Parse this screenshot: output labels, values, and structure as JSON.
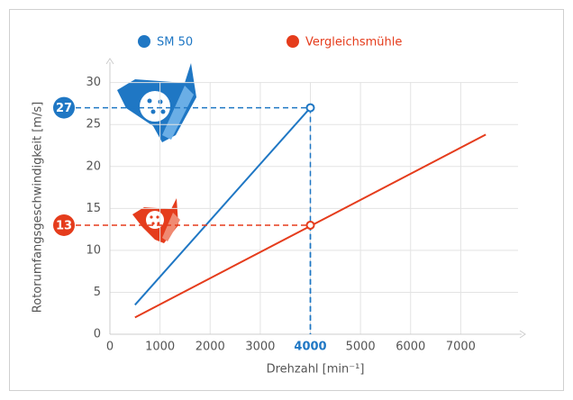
{
  "chart_data": {
    "type": "line",
    "x_label": "Drehzahl [min⁻¹]",
    "y_label": "Rotorumfangsgeschwindigkeit [m/s]",
    "xlim": [
      0,
      8000
    ],
    "ylim": [
      0,
      32
    ],
    "xticks": [
      0,
      1000,
      2000,
      3000,
      4000,
      5000,
      6000,
      7000
    ],
    "yticks": [
      0,
      5,
      10,
      15,
      20,
      25,
      30
    ],
    "grid": true,
    "legend": "top",
    "series": [
      {
        "name": "SM 50",
        "color": "#1f77c4",
        "x": [
          500,
          4000
        ],
        "values": [
          3.5,
          27
        ]
      },
      {
        "name": "Vergleichsmühle",
        "color": "#e53c1c",
        "x": [
          500,
          7500
        ],
        "values": [
          2,
          23.8
        ]
      }
    ],
    "annotations": [
      {
        "series": 0,
        "x": 4000,
        "y": 27
      },
      {
        "series": 1,
        "x": 4000,
        "y": 13
      }
    ]
  }
}
